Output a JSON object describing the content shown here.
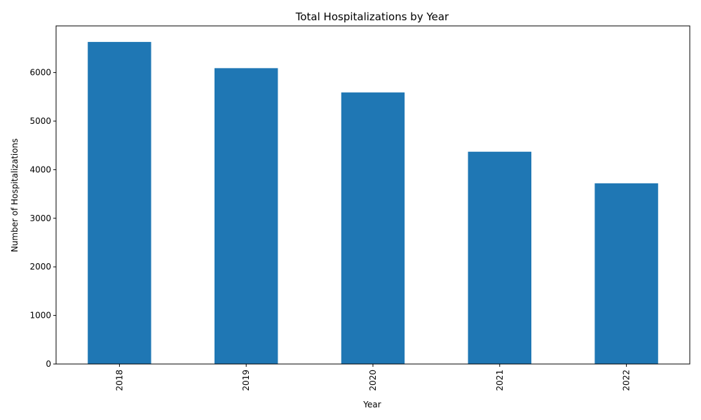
{
  "chart_data": {
    "type": "bar",
    "title": "Total Hospitalizations by Year",
    "xlabel": "Year",
    "ylabel": "Number of Hospitalizations",
    "categories": [
      "2018",
      "2019",
      "2020",
      "2021",
      "2022"
    ],
    "values": [
      6630,
      6090,
      5590,
      4370,
      3720
    ],
    "ylim": [
      0,
      6960
    ],
    "yticks": [
      0,
      1000,
      2000,
      3000,
      4000,
      5000,
      6000
    ],
    "bar_color": "#1f77b4",
    "grid": false,
    "legend": "none"
  }
}
